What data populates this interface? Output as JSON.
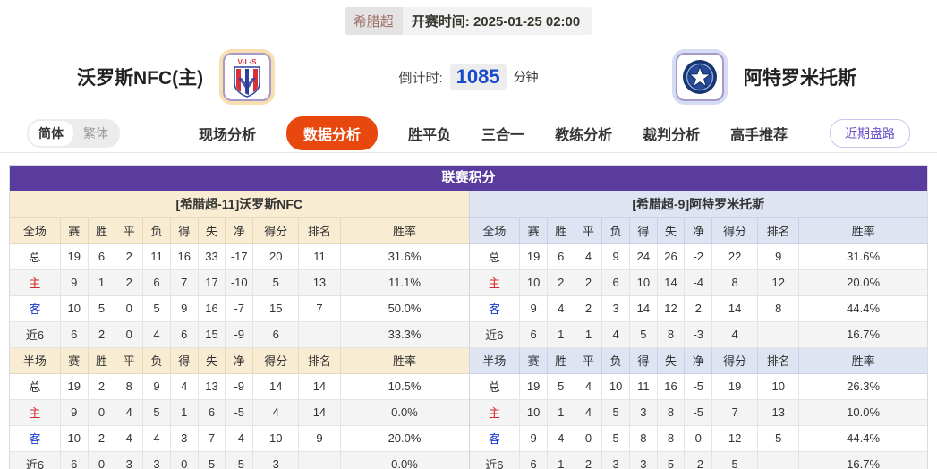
{
  "top": {
    "league": "希腊超",
    "kickoff_label": "开赛时间:",
    "kickoff_time": "2025-01-25 02:00"
  },
  "teams": {
    "home": {
      "name": "沃罗斯NFC(主)",
      "logo": "volos-crest"
    },
    "away": {
      "name": "阿特罗米托斯",
      "logo": "atromitos-crest"
    }
  },
  "countdown": {
    "label": "倒计时:",
    "value": "1085",
    "unit": "分钟"
  },
  "nav": {
    "lang": [
      {
        "label": "简体",
        "active": true
      },
      {
        "label": "繁体",
        "active": false
      }
    ],
    "tabs": [
      {
        "label": "现场分析",
        "active": false
      },
      {
        "label": "数据分析",
        "active": true
      },
      {
        "label": "胜平负",
        "active": false
      },
      {
        "label": "三合一",
        "active": false
      },
      {
        "label": "教练分析",
        "active": false
      },
      {
        "label": "裁判分析",
        "active": false
      },
      {
        "label": "高手推荐",
        "active": false
      }
    ],
    "recent_button": "近期盘路"
  },
  "standings": {
    "section_title": "联赛积分",
    "full_label": "全场",
    "half_label": "半场",
    "headers": [
      "赛",
      "胜",
      "平",
      "负",
      "得",
      "失",
      "净",
      "得分",
      "排名",
      "胜率"
    ],
    "row_labels": [
      "总",
      "主",
      "客",
      "近6"
    ],
    "left": {
      "title": "[希腊超-11]沃罗斯NFC",
      "full": [
        [
          "19",
          "6",
          "2",
          "11",
          "16",
          "33",
          "-17",
          "20",
          "11",
          "31.6%"
        ],
        [
          "9",
          "1",
          "2",
          "6",
          "7",
          "17",
          "-10",
          "5",
          "13",
          "11.1%"
        ],
        [
          "10",
          "5",
          "0",
          "5",
          "9",
          "16",
          "-7",
          "15",
          "7",
          "50.0%"
        ],
        [
          "6",
          "2",
          "0",
          "4",
          "6",
          "15",
          "-9",
          "6",
          "",
          "33.3%"
        ]
      ],
      "half": [
        [
          "19",
          "2",
          "8",
          "9",
          "4",
          "13",
          "-9",
          "14",
          "14",
          "10.5%"
        ],
        [
          "9",
          "0",
          "4",
          "5",
          "1",
          "6",
          "-5",
          "4",
          "14",
          "0.0%"
        ],
        [
          "10",
          "2",
          "4",
          "4",
          "3",
          "7",
          "-4",
          "10",
          "9",
          "20.0%"
        ],
        [
          "6",
          "0",
          "3",
          "3",
          "0",
          "5",
          "-5",
          "3",
          "",
          "0.0%"
        ]
      ]
    },
    "right": {
      "title": "[希腊超-9]阿特罗米托斯",
      "full": [
        [
          "19",
          "6",
          "4",
          "9",
          "24",
          "26",
          "-2",
          "22",
          "9",
          "31.6%"
        ],
        [
          "10",
          "2",
          "2",
          "6",
          "10",
          "14",
          "-4",
          "8",
          "12",
          "20.0%"
        ],
        [
          "9",
          "4",
          "2",
          "3",
          "14",
          "12",
          "2",
          "14",
          "8",
          "44.4%"
        ],
        [
          "6",
          "1",
          "1",
          "4",
          "5",
          "8",
          "-3",
          "4",
          "",
          "16.7%"
        ]
      ],
      "half": [
        [
          "19",
          "5",
          "4",
          "10",
          "11",
          "16",
          "-5",
          "19",
          "10",
          "26.3%"
        ],
        [
          "10",
          "1",
          "4",
          "5",
          "3",
          "8",
          "-5",
          "7",
          "13",
          "10.0%"
        ],
        [
          "9",
          "4",
          "0",
          "5",
          "8",
          "8",
          "0",
          "12",
          "5",
          "44.4%"
        ],
        [
          "6",
          "1",
          "2",
          "3",
          "3",
          "5",
          "-2",
          "5",
          "",
          "16.7%"
        ]
      ]
    }
  },
  "colors": {
    "header_purple": "#5a3c9f",
    "active_tab_orange": "#e8470d",
    "left_header_cream": "#f8ecd2",
    "right_header_blue": "#dfe4f3",
    "home_row_red": "#d3272c",
    "away_row_blue": "#1536cf",
    "countdown_blue": "#1749cb"
  }
}
